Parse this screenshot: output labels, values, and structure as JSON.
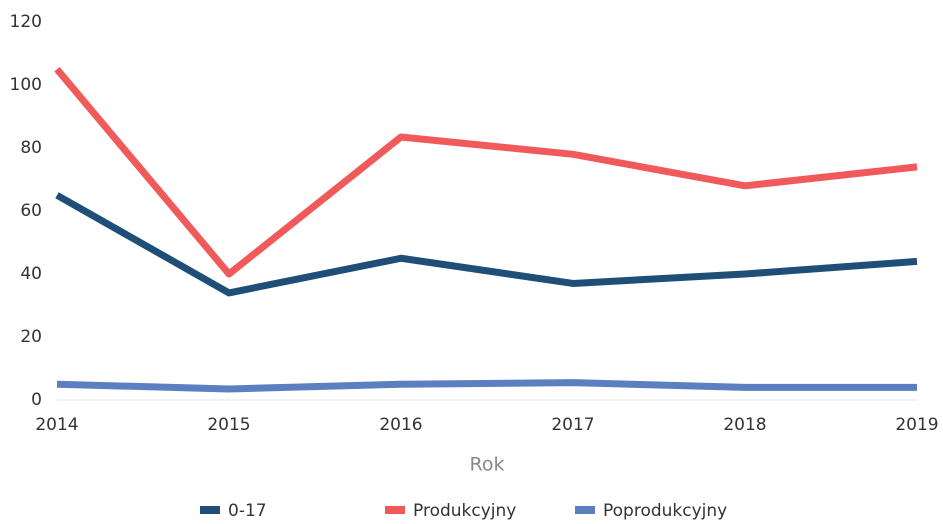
{
  "chart_data": {
    "type": "line",
    "x": [
      2014,
      2015,
      2016,
      2017,
      2018,
      2019
    ],
    "xlabel": "Rok",
    "xlim": [
      2014,
      2019
    ],
    "xticks": [
      2014,
      2015,
      2016,
      2017,
      2018,
      2019
    ],
    "ylim": [
      0,
      120
    ],
    "yticks": [
      0,
      20,
      40,
      60,
      80,
      100,
      120
    ],
    "grid": false,
    "legend": "bottom",
    "series": [
      {
        "name": "0-17",
        "color": "#1f4e79",
        "values": [
          65,
          34,
          45,
          37,
          40,
          44
        ]
      },
      {
        "name": "Produkcyjny",
        "color": "#f05a5a",
        "values": [
          105,
          40,
          83.5,
          78,
          68,
          74
        ]
      },
      {
        "name": "Poprodukcyjny",
        "color": "#5b7fc0",
        "values": [
          5,
          3.5,
          5,
          5.5,
          4,
          4
        ]
      }
    ]
  }
}
